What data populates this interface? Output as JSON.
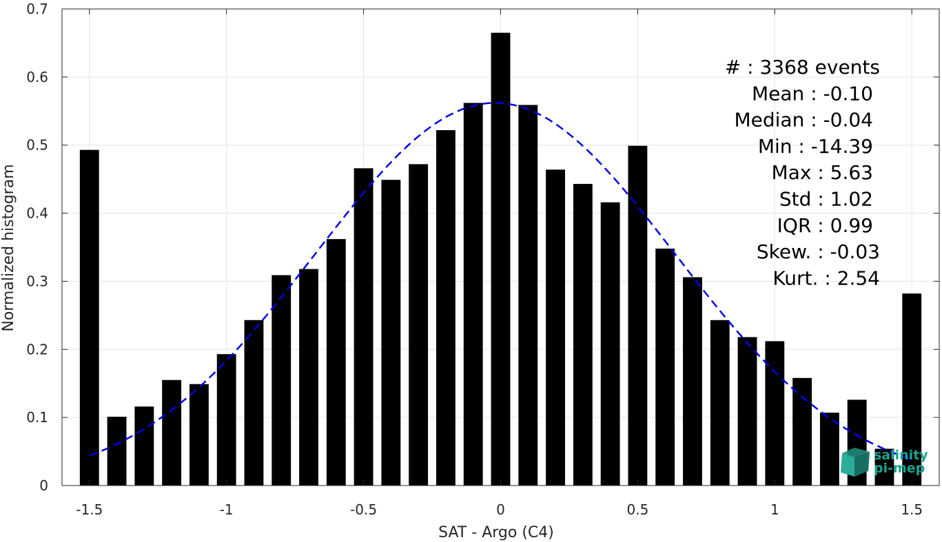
{
  "chart_data": {
    "type": "bar",
    "xlabel": "SAT - Argo (C4)",
    "ylabel": "Normalized histogram",
    "xlim": [
      -1.6,
      1.6
    ],
    "ylim": [
      0,
      0.7
    ],
    "x_ticks": [
      "-1.5",
      "-1",
      "-0.5",
      "0",
      "0.5",
      "1",
      "1.5"
    ],
    "x_tick_values": [
      -1.5,
      -1,
      -0.5,
      0,
      0.5,
      1,
      1.5
    ],
    "y_ticks": [
      "0",
      "0.1",
      "0.2",
      "0.3",
      "0.4",
      "0.5",
      "0.6",
      "0.7"
    ],
    "y_tick_values": [
      0,
      0.1,
      0.2,
      0.3,
      0.4,
      0.5,
      0.6,
      0.7
    ],
    "grid": true,
    "bin_width": 0.1,
    "bar_color": "#000000",
    "x": [
      -1.5,
      -1.4,
      -1.3,
      -1.2,
      -1.1,
      -1.0,
      -0.9,
      -0.8,
      -0.7,
      -0.6,
      -0.5,
      -0.4,
      -0.3,
      -0.2,
      -0.1,
      0.0,
      0.1,
      0.2,
      0.3,
      0.4,
      0.5,
      0.6,
      0.7,
      0.8,
      0.9,
      1.0,
      1.1,
      1.2,
      1.3,
      1.4,
      1.5
    ],
    "values": [
      0.493,
      0.101,
      0.116,
      0.155,
      0.149,
      0.193,
      0.243,
      0.309,
      0.318,
      0.362,
      0.466,
      0.449,
      0.472,
      0.522,
      0.562,
      0.665,
      0.559,
      0.464,
      0.443,
      0.416,
      0.499,
      0.348,
      0.306,
      0.243,
      0.218,
      0.212,
      0.158,
      0.107,
      0.126,
      0.054,
      0.282
    ],
    "fit": {
      "type": "gaussian",
      "color": "#0000e6",
      "style": "dashed",
      "peak": 0.562,
      "center": -0.02,
      "sigma": 0.655,
      "x_range": [
        -1.5,
        1.5
      ]
    },
    "stats": [
      "#  : 3368 events",
      "Mean : -0.10",
      "Median : -0.04",
      "Min : -14.39",
      "Max : 5.63",
      "Std : 1.02",
      "IQR : 0.99",
      "Skew. : -0.03",
      "Kurt. : 2.54"
    ]
  },
  "logo": {
    "line1": "salinity",
    "line2": "pi-mep",
    "color": "#1aa38f"
  }
}
